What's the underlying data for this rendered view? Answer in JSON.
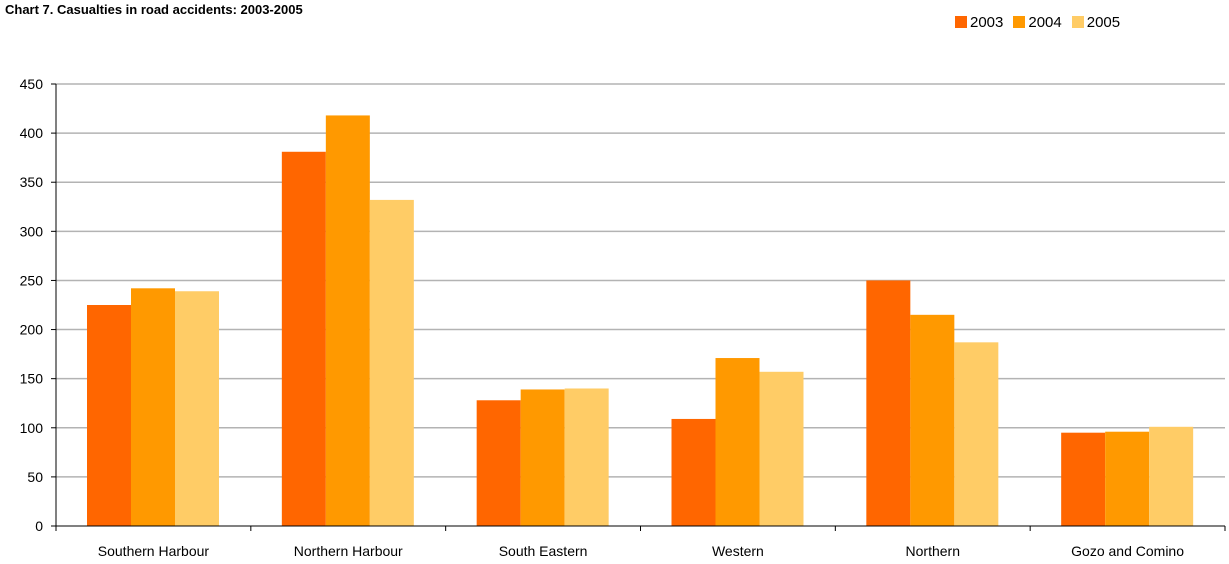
{
  "chart_data": {
    "type": "bar",
    "title": "Chart 7. Casualties in road accidents: 2003-2005",
    "xlabel": "",
    "ylabel": "",
    "categories": [
      "Southern Harbour",
      "Northern Harbour",
      "South Eastern",
      "Western",
      "Northern",
      "Gozo and Comino"
    ],
    "series": [
      {
        "name": "2003",
        "color": "#ff6600",
        "values": [
          225,
          381,
          128,
          109,
          250,
          95
        ]
      },
      {
        "name": "2004",
        "color": "#ff9900",
        "values": [
          242,
          418,
          139,
          171,
          215,
          96
        ]
      },
      {
        "name": "2005",
        "color": "#ffcc66",
        "values": [
          239,
          332,
          140,
          157,
          187,
          101
        ]
      }
    ],
    "ylim": [
      0,
      450
    ],
    "yticks": [
      0,
      50,
      100,
      150,
      200,
      250,
      300,
      350,
      400,
      450
    ],
    "grid": true,
    "legend_position": "top-right"
  }
}
